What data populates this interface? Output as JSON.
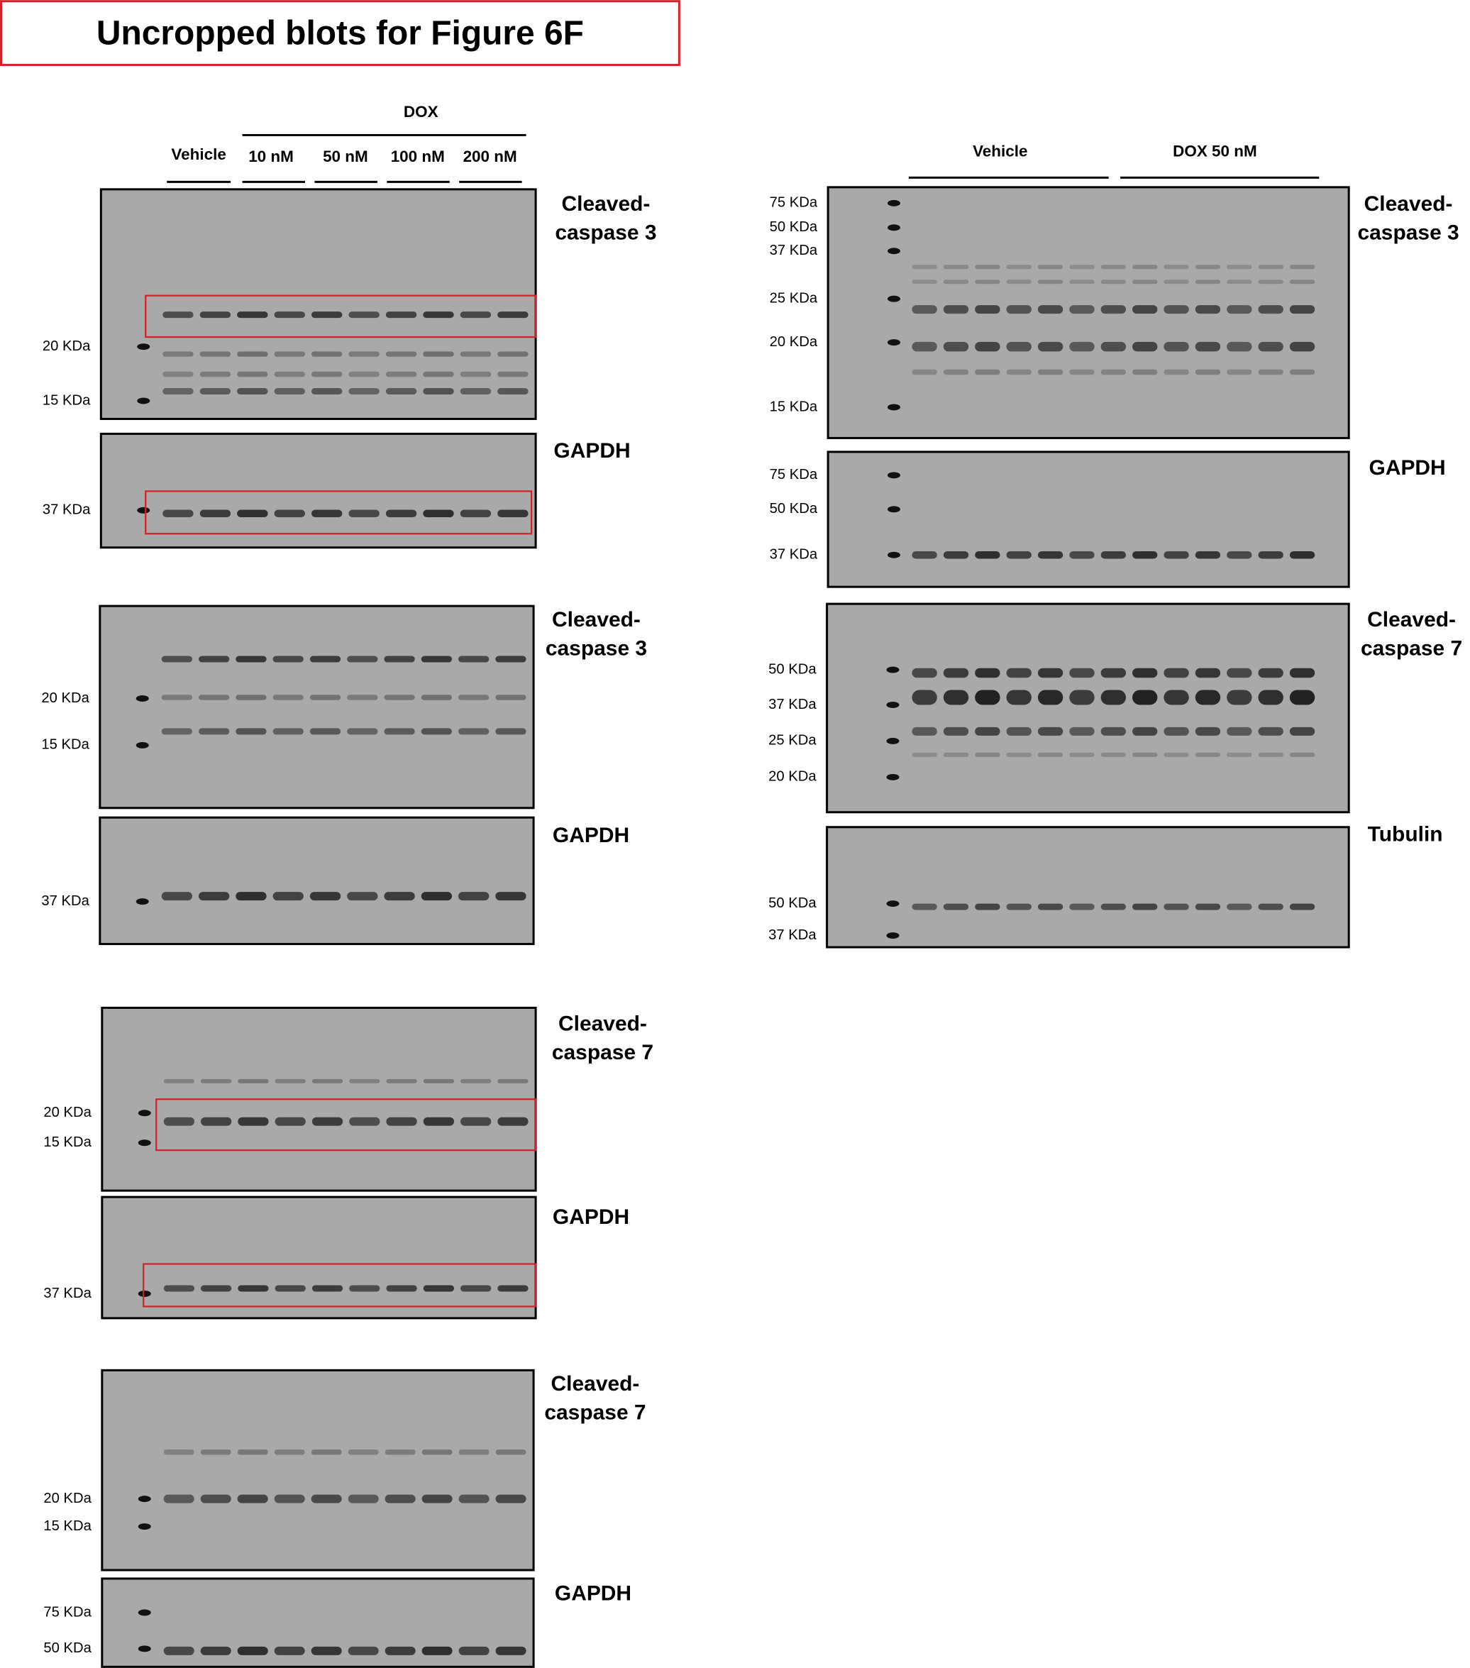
{
  "title": "Uncropped blots for Figure  6F",
  "left_header": {
    "group": "DOX",
    "lanes": [
      "Vehicle",
      "10 nM",
      "50 nM",
      "100 nM",
      "200 nM"
    ]
  },
  "right_header": {
    "lanes": [
      "Vehicle",
      "DOX 50 nM"
    ]
  },
  "left_blots": [
    {
      "label": [
        "Cleaved-",
        "caspase 3"
      ],
      "markers": [
        "20 KDa",
        "15 KDa"
      ]
    },
    {
      "label": [
        "GAPDH"
      ],
      "markers": [
        "37 KDa"
      ]
    },
    {
      "label": [
        "Cleaved-",
        "caspase 3"
      ],
      "markers": [
        "20 KDa",
        "15 KDa"
      ]
    },
    {
      "label": [
        "GAPDH"
      ],
      "markers": [
        "37 KDa"
      ]
    },
    {
      "label": [
        "Cleaved-",
        "caspase 7"
      ],
      "markers": [
        "20 KDa",
        "15 KDa"
      ]
    },
    {
      "label": [
        "GAPDH"
      ],
      "markers": [
        "37 KDa"
      ]
    },
    {
      "label": [
        "Cleaved-",
        "caspase 7"
      ],
      "markers": [
        "20 KDa",
        "15 KDa"
      ]
    },
    {
      "label": [
        "GAPDH"
      ],
      "markers": [
        "75 KDa",
        "50 KDa"
      ]
    }
  ],
  "right_blots": [
    {
      "label": [
        "Cleaved-",
        "caspase 3"
      ],
      "markers": [
        "75 KDa",
        "50 KDa",
        "37 KDa",
        "25 KDa",
        "20 KDa",
        "15 KDa"
      ]
    },
    {
      "label": [
        "GAPDH"
      ],
      "markers": [
        "75 KDa",
        "50 KDa",
        "37 KDa"
      ]
    },
    {
      "label": [
        "Cleaved-",
        "caspase 7"
      ],
      "markers": [
        "50 KDa",
        "37 KDa",
        "25 KDa",
        "20 KDa"
      ]
    },
    {
      "label": [
        "Tubulin"
      ],
      "markers": [
        "50 KDa",
        "37 KDa"
      ]
    }
  ]
}
